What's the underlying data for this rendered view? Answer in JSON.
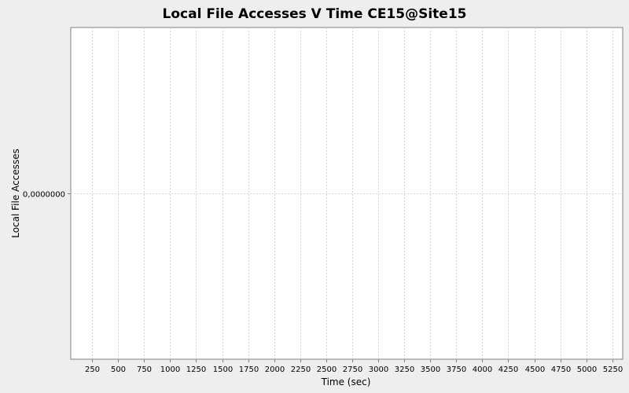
{
  "chart_data": {
    "type": "line",
    "title": "Local File Accesses V Time CE15@Site15",
    "xlabel": "Time (sec)",
    "ylabel": "Local File Accesses",
    "x_ticks": [
      250,
      500,
      750,
      1000,
      1250,
      1500,
      1750,
      2000,
      2250,
      2500,
      2750,
      3000,
      3250,
      3500,
      3750,
      4000,
      4250,
      4500,
      4750,
      5000,
      5250
    ],
    "x_tick_labels": [
      "250",
      "500",
      "750",
      "1000",
      "1250",
      "1500",
      "1750",
      "2000",
      "2250",
      "2500",
      "2750",
      "3000",
      "3250",
      "3500",
      "3750",
      "4000",
      "4250",
      "4500",
      "4750",
      "5000",
      "5250"
    ],
    "xlim": [
      45,
      5350
    ],
    "y_ticks": [
      0
    ],
    "y_tick_labels": [
      "0,0000000"
    ],
    "ylim": [
      -1,
      1
    ],
    "series": [],
    "grid": true,
    "colors": {
      "background": "#eeeeee",
      "plot_background": "#ffffff",
      "grid": "#d4d4d4",
      "axis": "#808080",
      "text": "#000000"
    }
  }
}
